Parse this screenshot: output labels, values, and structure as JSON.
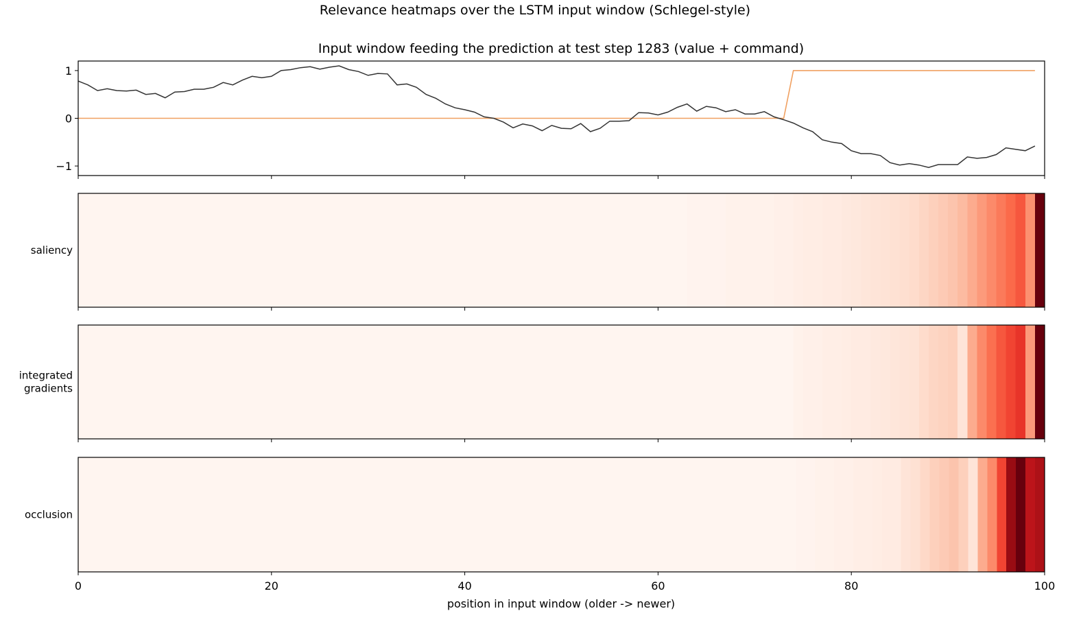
{
  "figure": {
    "suptitle": "Relevance heatmaps over the LSTM input window (Schlegel-style)"
  },
  "chart_data": [
    {
      "type": "line",
      "title": "Input window feeding the prediction at test step 1283 (value + command)",
      "xlim": [
        0,
        100
      ],
      "ylim": [
        -1.2,
        1.2
      ],
      "yticks": [
        1,
        0,
        -1
      ],
      "ytick_labels": [
        "1",
        "0",
        "−1"
      ],
      "colors": {
        "value": "#333333",
        "command": "#f0a060"
      },
      "series": [
        {
          "key": "value",
          "x": [
            0,
            1,
            2,
            3,
            4,
            5,
            6,
            7,
            8,
            9,
            10,
            11,
            12,
            13,
            14,
            15,
            16,
            17,
            18,
            19,
            20,
            21,
            22,
            23,
            24,
            25,
            26,
            27,
            28,
            29,
            30,
            31,
            32,
            33,
            34,
            35,
            36,
            37,
            38,
            39,
            40,
            41,
            42,
            43,
            44,
            45,
            46,
            47,
            48,
            49,
            50,
            51,
            52,
            53,
            54,
            55,
            56,
            57,
            58,
            59,
            60,
            61,
            62,
            63,
            64,
            65,
            66,
            67,
            68,
            69,
            70,
            71,
            72,
            73,
            74,
            75,
            76,
            77,
            78,
            79,
            80,
            81,
            82,
            83,
            84,
            85,
            86,
            87,
            88,
            89,
            90,
            91,
            92,
            93,
            94,
            95,
            96,
            97,
            98,
            99
          ],
          "values": [
            0.78,
            0.7,
            0.58,
            0.62,
            0.58,
            0.57,
            0.59,
            0.5,
            0.52,
            0.43,
            0.55,
            0.56,
            0.61,
            0.61,
            0.65,
            0.75,
            0.7,
            0.8,
            0.88,
            0.85,
            0.88,
            1.0,
            1.02,
            1.06,
            1.08,
            1.03,
            1.07,
            1.1,
            1.02,
            0.98,
            0.9,
            0.94,
            0.93,
            0.7,
            0.72,
            0.65,
            0.5,
            0.42,
            0.3,
            0.22,
            0.18,
            0.13,
            0.03,
            0.0,
            -0.08,
            -0.2,
            -0.12,
            -0.16,
            -0.26,
            -0.15,
            -0.21,
            -0.22,
            -0.11,
            -0.28,
            -0.21,
            -0.06,
            -0.06,
            -0.05,
            0.12,
            0.11,
            0.07,
            0.13,
            0.23,
            0.3,
            0.15,
            0.25,
            0.22,
            0.14,
            0.18,
            0.09,
            0.09,
            0.14,
            0.03,
            -0.03,
            -0.1,
            -0.2,
            -0.28,
            -0.45,
            -0.5,
            -0.53,
            -0.68,
            -0.74,
            -0.74,
            -0.78,
            -0.93,
            -0.98,
            -0.95,
            -0.98,
            -1.03,
            -0.97,
            -0.97,
            -0.97,
            -0.81,
            -0.84,
            -0.82,
            -0.76,
            -0.62,
            -0.65,
            -0.68,
            -0.58
          ]
        },
        {
          "key": "command",
          "x": [
            0,
            73,
            74,
            99
          ],
          "values": [
            0,
            0,
            1,
            1
          ]
        }
      ]
    },
    {
      "type": "heatmap",
      "xlabel": "position in input window (older -> newer)",
      "xlim": [
        0,
        100
      ],
      "xticks": [
        0,
        20,
        40,
        60,
        80,
        100
      ],
      "colormap": "Reds",
      "rows": [
        {
          "label": "saliency",
          "values": [
            0,
            0,
            0,
            0,
            0,
            0,
            0,
            0,
            0,
            0,
            0,
            0,
            0,
            0,
            0,
            0,
            0,
            0,
            0,
            0,
            0,
            0,
            0,
            0,
            0,
            0,
            0,
            0,
            0,
            0,
            0,
            0,
            0,
            0,
            0,
            0,
            0,
            0,
            0,
            0,
            0,
            0,
            0,
            0,
            0,
            0,
            0,
            0,
            0,
            0,
            0,
            0,
            0,
            0,
            0,
            0,
            0,
            0,
            0,
            0,
            0,
            0,
            0,
            0.01,
            0.01,
            0.01,
            0.01,
            0.02,
            0.02,
            0.02,
            0.02,
            0.02,
            0.03,
            0.03,
            0.04,
            0.05,
            0.05,
            0.06,
            0.06,
            0.07,
            0.08,
            0.09,
            0.1,
            0.11,
            0.12,
            0.13,
            0.14,
            0.16,
            0.18,
            0.2,
            0.22,
            0.25,
            0.3,
            0.35,
            0.4,
            0.45,
            0.5,
            0.55,
            0.38,
            1.0
          ]
        },
        {
          "label": "integrated\ngradients",
          "values": [
            0,
            0,
            0,
            0,
            0,
            0,
            0,
            0,
            0,
            0,
            0,
            0,
            0,
            0,
            0,
            0,
            0,
            0,
            0,
            0,
            0,
            0,
            0,
            0,
            0,
            0,
            0,
            0,
            0,
            0,
            0,
            0,
            0,
            0,
            0,
            0,
            0,
            0,
            0,
            0,
            0,
            0,
            0,
            0,
            0,
            0,
            0,
            0,
            0,
            0,
            0,
            0,
            0,
            0,
            0,
            0,
            0,
            0,
            0,
            0,
            0,
            0,
            0,
            0,
            0,
            0,
            0,
            0,
            0,
            0,
            0,
            0,
            0,
            0,
            0.02,
            0.03,
            0.03,
            0.04,
            0.04,
            0.05,
            0.06,
            0.06,
            0.07,
            0.08,
            0.09,
            0.1,
            0.11,
            0.14,
            0.16,
            0.17,
            0.18,
            0.1,
            0.3,
            0.4,
            0.48,
            0.55,
            0.6,
            0.65,
            0.35,
            1.0
          ]
        },
        {
          "label": "occlusion",
          "values": [
            0,
            0,
            0,
            0,
            0,
            0,
            0,
            0,
            0,
            0,
            0,
            0,
            0,
            0,
            0,
            0,
            0,
            0,
            0,
            0,
            0,
            0,
            0,
            0,
            0,
            0,
            0,
            0,
            0,
            0,
            0,
            0,
            0,
            0,
            0,
            0,
            0,
            0,
            0,
            0,
            0,
            0,
            0,
            0,
            0,
            0,
            0,
            0,
            0,
            0,
            0,
            0,
            0,
            0,
            0,
            0,
            0,
            0,
            0,
            0,
            0,
            0,
            0,
            0,
            0,
            0,
            0,
            0,
            0,
            0,
            0,
            0,
            0,
            0,
            0,
            0.01,
            0.01,
            0.02,
            0.02,
            0.03,
            0.03,
            0.04,
            0.04,
            0.05,
            0.06,
            0.06,
            0.1,
            0.12,
            0.15,
            0.18,
            0.2,
            0.22,
            0.18,
            0.1,
            0.3,
            0.4,
            0.6,
            0.9,
            1.0,
            0.8,
            0.85
          ]
        }
      ]
    }
  ]
}
